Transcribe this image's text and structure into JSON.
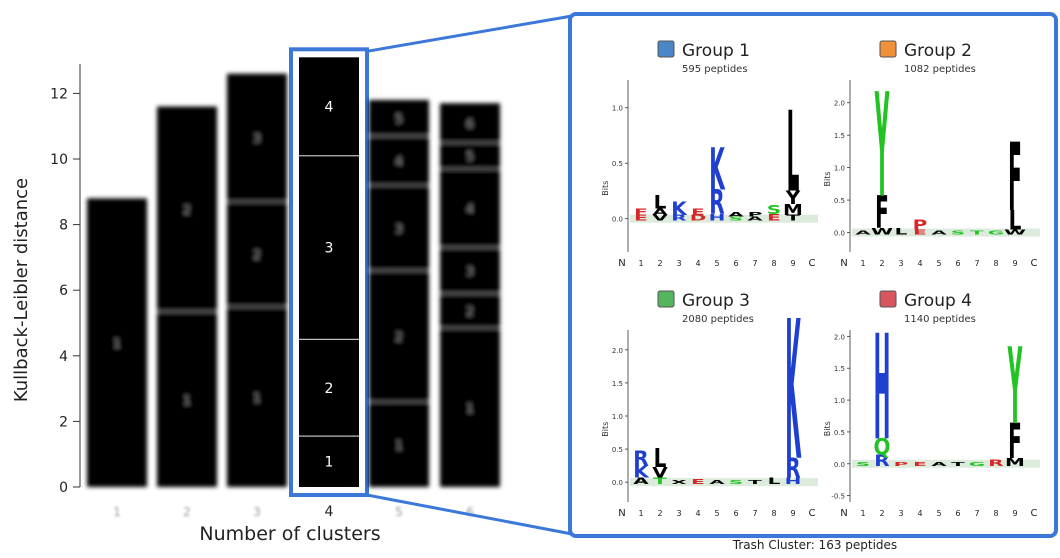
{
  "chart_data": {
    "type": "bar",
    "stacked": true,
    "xlabel": "Number of clusters",
    "ylabel": "Kullback-Leibler distance",
    "ylim": [
      0,
      13
    ],
    "y_ticks": [
      0,
      2,
      4,
      6,
      8,
      10,
      12
    ],
    "categories": [
      "1",
      "2",
      "3",
      "4",
      "5",
      "6"
    ],
    "highlighted_category": "4",
    "bars": [
      {
        "category": "1",
        "total": 8.8,
        "segments": [
          {
            "label": "1",
            "value": 8.8
          }
        ]
      },
      {
        "category": "2",
        "total": 11.6,
        "segments": [
          {
            "label": "1",
            "value": 5.35
          },
          {
            "label": "2",
            "value": 6.25
          }
        ]
      },
      {
        "category": "3",
        "total": 12.6,
        "segments": [
          {
            "label": "1",
            "value": 5.5
          },
          {
            "label": "2",
            "value": 3.2
          },
          {
            "label": "3",
            "value": 3.9
          }
        ]
      },
      {
        "category": "4",
        "total": 13.1,
        "segments": [
          {
            "label": "1",
            "value": 1.55
          },
          {
            "label": "2",
            "value": 2.95
          },
          {
            "label": "3",
            "value": 5.6
          },
          {
            "label": "4",
            "value": 3.0
          }
        ]
      },
      {
        "category": "5",
        "total": 11.8,
        "segments": [
          {
            "label": "1",
            "value": 2.6
          },
          {
            "label": "2",
            "value": 4.0
          },
          {
            "label": "3",
            "value": 2.6
          },
          {
            "label": "4",
            "value": 1.5
          },
          {
            "label": "5",
            "value": 1.1
          }
        ]
      },
      {
        "category": "6",
        "total": 11.7,
        "segments": [
          {
            "label": "1",
            "value": 4.85
          },
          {
            "label": "2",
            "value": 1.05
          },
          {
            "label": "3",
            "value": 1.4
          },
          {
            "label": "4",
            "value": 2.4
          },
          {
            "label": "5",
            "value": 0.8
          },
          {
            "label": "6",
            "value": 1.2
          }
        ]
      }
    ]
  },
  "logo_panels": [
    {
      "group": "Group 1",
      "peptides": "595 peptides",
      "color": "#4a86c8",
      "ylabel": "Bits",
      "yticks": [
        "1.0",
        "0.5",
        "0.0"
      ],
      "xticks": [
        "N",
        "1",
        "2",
        "3",
        "4",
        "5",
        "6",
        "7",
        "8",
        "9",
        "C"
      ],
      "stacks": [
        {
          "pos": 1,
          "letters": [
            [
              "F",
              "#d62728",
              0.06
            ],
            [
              "E",
              "#d62728",
              0.05
            ]
          ]
        },
        {
          "pos": 2,
          "letters": [
            [
              "L",
              "#000000",
              0.12
            ],
            [
              "A",
              "#000000",
              0.06
            ],
            [
              "V",
              "#000000",
              0.05
            ]
          ]
        },
        {
          "pos": 3,
          "letters": [
            [
              "K",
              "#1f3fd1",
              0.12
            ],
            [
              "R",
              "#1f3fd1",
              0.05
            ]
          ]
        },
        {
          "pos": 4,
          "letters": [
            [
              "E",
              "#d62728",
              0.06
            ],
            [
              "D",
              "#d62728",
              0.05
            ]
          ]
        },
        {
          "pos": 5,
          "letters": [
            [
              "K",
              "#1f3fd1",
              0.38
            ],
            [
              "R",
              "#1f3fd1",
              0.22
            ],
            [
              "H",
              "#1f3fd1",
              0.06
            ]
          ]
        },
        {
          "pos": 6,
          "letters": [
            [
              "A",
              "#000000",
              0.04
            ],
            [
              "S",
              "#22c322",
              0.03
            ]
          ]
        },
        {
          "pos": 7,
          "letters": [
            [
              "P",
              "#000000",
              0.04
            ],
            [
              "A",
              "#000000",
              0.03
            ]
          ]
        },
        {
          "pos": 8,
          "letters": [
            [
              "S",
              "#22c322",
              0.08
            ],
            [
              "E",
              "#d62728",
              0.06
            ]
          ]
        },
        {
          "pos": 9,
          "letters": [
            [
              "L",
              "#000000",
              0.72
            ],
            [
              "Y",
              "#000000",
              0.12
            ],
            [
              "T",
              "#000000",
              0.05
            ],
            [
              "M",
              "#000000",
              0.1
            ]
          ]
        }
      ]
    },
    {
      "group": "Group 2",
      "peptides": "1082 peptides",
      "color": "#f0913a",
      "ylabel": "Bits",
      "yticks": [
        "2.0",
        "1.5",
        "1.0",
        "0.5",
        "0.0"
      ],
      "xticks": [
        "N",
        "1",
        "2",
        "3",
        "4",
        "5",
        "6",
        "7",
        "8",
        "9",
        "C"
      ],
      "stacks": [
        {
          "pos": 1,
          "letters": [
            [
              "A",
              "#000000",
              0.05
            ]
          ]
        },
        {
          "pos": 2,
          "letters": [
            [
              "Y",
              "#22c322",
              1.6
            ],
            [
              "F",
              "#000000",
              0.5
            ],
            [
              "W",
              "#000000",
              0.1
            ]
          ]
        },
        {
          "pos": 3,
          "letters": [
            [
              "L",
              "#000000",
              0.1
            ]
          ]
        },
        {
          "pos": 4,
          "letters": [
            [
              "P",
              "#d62728",
              0.15
            ],
            [
              "E",
              "#d62728",
              0.08
            ]
          ]
        },
        {
          "pos": 5,
          "letters": [
            [
              "A",
              "#000000",
              0.05
            ]
          ]
        },
        {
          "pos": 6,
          "letters": [
            [
              "S",
              "#22c322",
              0.04
            ]
          ]
        },
        {
          "pos": 7,
          "letters": [
            [
              "T",
              "#22c322",
              0.04
            ]
          ]
        },
        {
          "pos": 8,
          "letters": [
            [
              "G",
              "#22c322",
              0.06
            ]
          ]
        },
        {
          "pos": 9,
          "letters": [
            [
              "F",
              "#000000",
              1.05
            ],
            [
              "L",
              "#000000",
              0.3
            ],
            [
              "W",
              "#000000",
              0.08
            ]
          ]
        }
      ]
    },
    {
      "group": "Group 3",
      "peptides": "2080 peptides",
      "color": "#55b55e",
      "ylabel": "Bits",
      "yticks": [
        "2.0",
        "1.5",
        "1.0",
        "0.5",
        "0.0"
      ],
      "xticks": [
        "N",
        "1",
        "2",
        "3",
        "4",
        "5",
        "6",
        "7",
        "8",
        "9",
        "C"
      ],
      "stacks": [
        {
          "pos": 1,
          "letters": [
            [
              "R",
              "#1f3fd1",
              0.22
            ],
            [
              "K",
              "#1f3fd1",
              0.18
            ],
            [
              "A",
              "#000000",
              0.1
            ]
          ]
        },
        {
          "pos": 2,
          "letters": [
            [
              "L",
              "#000000",
              0.28
            ],
            [
              "V",
              "#000000",
              0.16
            ],
            [
              "T",
              "#22c322",
              0.1
            ]
          ]
        },
        {
          "pos": 3,
          "letters": [
            [
              "X",
              "#000000",
              0.05
            ]
          ]
        },
        {
          "pos": 4,
          "letters": [
            [
              "E",
              "#d62728",
              0.08
            ]
          ]
        },
        {
          "pos": 5,
          "letters": [
            [
              "A",
              "#000000",
              0.05
            ]
          ]
        },
        {
          "pos": 6,
          "letters": [
            [
              "S",
              "#22c322",
              0.04
            ]
          ]
        },
        {
          "pos": 7,
          "letters": [
            [
              "T",
              "#000000",
              0.04
            ]
          ]
        },
        {
          "pos": 8,
          "letters": [
            [
              "L",
              "#000000",
              0.1
            ]
          ]
        },
        {
          "pos": 9,
          "letters": [
            [
              "K",
              "#1f3fd1",
              2.1
            ],
            [
              "R",
              "#1f3fd1",
              0.3
            ],
            [
              "H",
              "#1f3fd1",
              0.1
            ]
          ]
        }
      ]
    },
    {
      "group": "Group 4",
      "peptides": "1140 peptides",
      "color": "#d9565f",
      "ylabel": "Bits",
      "yticks": [
        "2.0",
        "1.5",
        "1.0",
        "0.5",
        "0.0",
        "-0.5"
      ],
      "xticks": [
        "N",
        "1",
        "2",
        "3",
        "4",
        "5",
        "6",
        "7",
        "8",
        "9",
        "C"
      ],
      "stacks": [
        {
          "pos": 1,
          "letters": [
            [
              "S",
              "#22c322",
              0.05
            ]
          ]
        },
        {
          "pos": 2,
          "letters": [
            [
              "H",
              "#1f3fd1",
              1.65
            ],
            [
              "Q",
              "#22c322",
              0.25
            ],
            [
              "R",
              "#1f3fd1",
              0.18
            ]
          ]
        },
        {
          "pos": 3,
          "letters": [
            [
              "P",
              "#d62728",
              0.06
            ]
          ]
        },
        {
          "pos": 4,
          "letters": [
            [
              "E",
              "#d62728",
              0.05
            ]
          ]
        },
        {
          "pos": 5,
          "letters": [
            [
              "A",
              "#000000",
              0.04
            ]
          ]
        },
        {
          "pos": 6,
          "letters": [
            [
              "T",
              "#000000",
              0.04
            ]
          ]
        },
        {
          "pos": 7,
          "letters": [
            [
              "G",
              "#22c322",
              0.05
            ]
          ]
        },
        {
          "pos": 8,
          "letters": [
            [
              "R",
              "#d62728",
              0.1
            ]
          ]
        },
        {
          "pos": 9,
          "letters": [
            [
              "Y",
              "#22c322",
              1.2
            ],
            [
              "F",
              "#000000",
              0.55
            ],
            [
              "M",
              "#000000",
              0.12
            ]
          ]
        }
      ]
    }
  ],
  "trash_cluster": "Trash Cluster: 163 peptides",
  "highlight_color": "#3b78d8"
}
